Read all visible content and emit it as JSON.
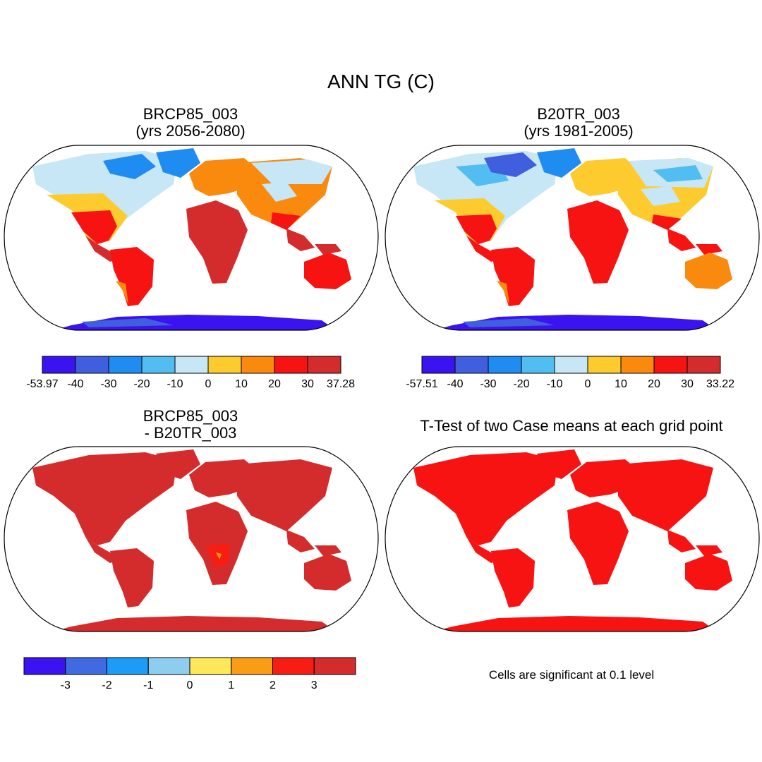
{
  "title": "ANN TG (C)",
  "panels": [
    {
      "id": "a",
      "title_line1": "BRCP85_003",
      "title_line2": "(yrs 2056-2080)",
      "colorbar": {
        "colors": [
          "#3b12f0",
          "#3f5fdf",
          "#1f8cf2",
          "#52bdf0",
          "#c7e6f6",
          "#fdcb2d",
          "#fa8a0e",
          "#f81313",
          "#d42c2c"
        ],
        "labels": [
          "-53.97",
          "-40",
          "-30",
          "-20",
          "-10",
          "0",
          "10",
          "20",
          "30",
          "37.28"
        ]
      }
    },
    {
      "id": "b",
      "title_line1": "B20TR_003",
      "title_line2": "(yrs 1981-2005)",
      "colorbar": {
        "colors": [
          "#3b12f0",
          "#3f5fdf",
          "#1f8cf2",
          "#52bdf0",
          "#c7e6f6",
          "#fdcb2d",
          "#fa8a0e",
          "#f81313",
          "#d42c2c"
        ],
        "labels": [
          "-57.51",
          "-40",
          "-30",
          "-20",
          "-10",
          "0",
          "10",
          "20",
          "30",
          "33.22"
        ]
      }
    },
    {
      "id": "c",
      "title_line1": "BRCP85_003",
      "title_line2": "- B20TR_003",
      "colorbar": {
        "colors": [
          "#3b12f0",
          "#3f6ae0",
          "#1e9bf5",
          "#8fcdee",
          "#fde85a",
          "#f99c16",
          "#f81d12",
          "#d42c2c"
        ],
        "labels": [
          "-3",
          "-2",
          "-1",
          "0",
          "1",
          "2",
          "3"
        ]
      }
    },
    {
      "id": "d",
      "title_line1": "T-Test of two Case means at each grid point"
    }
  ],
  "significance_note": "Cells are significant at 0.1 level"
}
